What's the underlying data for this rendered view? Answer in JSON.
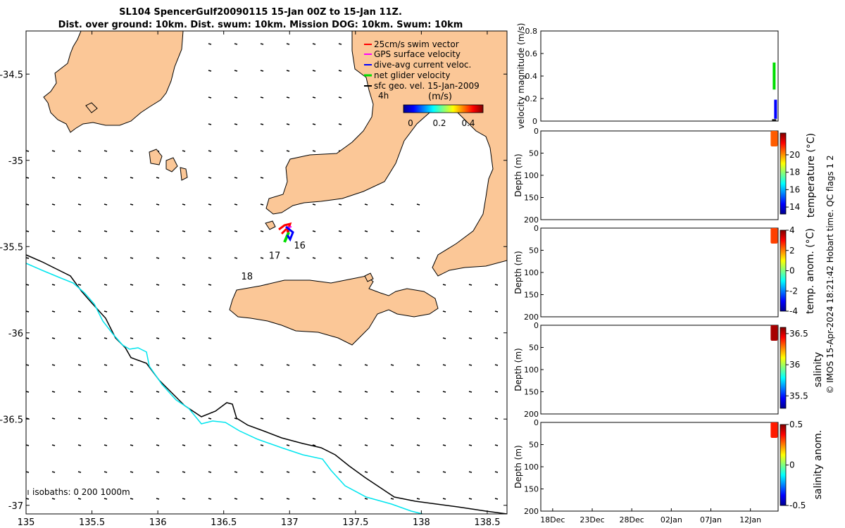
{
  "header": {
    "title_line1": "SL104 SpencerGulf20090115 15-Jan 00Z to 15-Jan 11Z.",
    "title_line2": "Dist. over ground: 10km. Dist. swum: 10km. Mission DOG: 10km. Swum: 10km"
  },
  "colors": {
    "land": "#fbc797",
    "coast": "#000000",
    "isobath_200": "#000000",
    "isobath_1000": "#00e5ee",
    "swim_vector": "#ff0000",
    "gps_velocity": "#ff00ff",
    "dive_avg_velocity": "#0000ff",
    "net_velocity": "#00dd00",
    "sfc_geo_velocity": "#000000"
  },
  "chart_data": [
    {
      "id": "map",
      "type": "map",
      "xlim": [
        135,
        138.65
      ],
      "ylim": [
        -37.05,
        -34.25
      ],
      "xticks": [
        "135",
        "135.5",
        "136",
        "136.5",
        "137",
        "137.5",
        "138",
        "138.5"
      ],
      "yticks": [
        "-34.5",
        "-35",
        "-35.5",
        "-36",
        "-36.5",
        "-37"
      ],
      "legend": {
        "placement": "top-right",
        "entries": [
          {
            "label": "25cm/s swim vector",
            "color": "#ff0000"
          },
          {
            "label": "GPS surface velocity",
            "color": "#ff00ff"
          },
          {
            "label": "dive-avg current veloc.",
            "color": "#0000ff"
          },
          {
            "label": "net glider velocity",
            "color": "#00dd00"
          },
          {
            "label": "sfc geo. vel. 15-Jan-2009",
            "color": "#000000"
          }
        ]
      },
      "time_label": "4h",
      "colorbar": {
        "title": "(m/s)",
        "ticks": [
          "0",
          "0.2",
          "0.4"
        ],
        "range": [
          0,
          0.5
        ]
      },
      "track_labels": [
        {
          "text": "16",
          "lon": 137.07,
          "lat": -35.49
        },
        {
          "text": "17",
          "lon": 136.88,
          "lat": -35.55
        },
        {
          "text": "18",
          "lon": 136.67,
          "lat": -35.67
        }
      ],
      "glider_position": {
        "lon": 136.99,
        "lat": -35.33
      },
      "isobaths_label": "isobaths: 0   200  1000m",
      "isobath_depths": [
        "0",
        "200",
        "1000"
      ]
    },
    {
      "id": "velocity",
      "type": "line",
      "ylabel": "velocity magnitude (m/s)",
      "ylim": [
        0,
        0.8
      ],
      "yticks": [
        "0",
        "0.2",
        "0.4",
        "0.6",
        "0.8"
      ],
      "series": [
        {
          "name": "net glider velocity",
          "color": "#00dd00",
          "date": "15-Jan",
          "values": [
            0.28,
            0.52
          ]
        },
        {
          "name": "dive-avg current veloc.",
          "color": "#0000ff",
          "date": "15-Jan",
          "values": [
            0.02,
            0.19
          ]
        }
      ]
    },
    {
      "id": "temperature",
      "type": "heatmap",
      "ylabel": "Depth (m)",
      "clabel": "temperature (°C)",
      "ylim": [
        0,
        200
      ],
      "yticks": [
        "0",
        "50",
        "100",
        "150",
        "200"
      ],
      "crange": [
        13.2,
        22.5
      ],
      "cticks": [
        "14",
        "16",
        "18",
        "20"
      ],
      "profile": {
        "date": "15-Jan",
        "depth_range": [
          0,
          35
        ],
        "value": 20.5
      }
    },
    {
      "id": "temp_anom",
      "type": "heatmap",
      "ylabel": "Depth (m)",
      "clabel": "temp. anom. (°C)",
      "ylim": [
        0,
        200
      ],
      "yticks": [
        "0",
        "50",
        "100",
        "150",
        "200"
      ],
      "crange": [
        -4,
        4
      ],
      "cticks": [
        "-4",
        "-2",
        "0",
        "2",
        "4"
      ],
      "profile": {
        "date": "15-Jan",
        "depth_range": [
          0,
          35
        ],
        "value": 2.5
      }
    },
    {
      "id": "salinity",
      "type": "heatmap",
      "ylabel": "Depth (m)",
      "clabel": "salinity",
      "ylim": [
        0,
        200
      ],
      "yticks": [
        "0",
        "50",
        "100",
        "150",
        "200"
      ],
      "crange": [
        35.3,
        36.6
      ],
      "cticks": [
        "35.5",
        "36",
        "36.5"
      ],
      "profile": {
        "date": "15-Jan",
        "depth_range": [
          0,
          35
        ],
        "value": 36.55
      }
    },
    {
      "id": "sal_anom",
      "type": "heatmap",
      "ylabel": "Depth (m)",
      "clabel": "salinity anom.",
      "ylim": [
        0,
        200
      ],
      "yticks": [
        "0",
        "50",
        "100",
        "150",
        "200"
      ],
      "crange": [
        -0.5,
        0.5
      ],
      "cticks": [
        "-0.5",
        "0",
        "0.5"
      ],
      "profile": {
        "date": "15-Jan",
        "depth_range": [
          0,
          35
        ],
        "value": 0.35
      },
      "xticks": [
        "18Dec",
        "23Dec",
        "28Dec",
        "02Jan",
        "07Jan",
        "12Jan"
      ],
      "xtick_days": [
        0,
        5,
        10,
        15,
        20,
        25
      ],
      "xrange_days": [
        -1.5,
        28.5
      ]
    }
  ],
  "footer": {
    "credit": "© IMOS 15-Apr-2024 18:21:42 Hobart time. QC flags 1  2"
  }
}
